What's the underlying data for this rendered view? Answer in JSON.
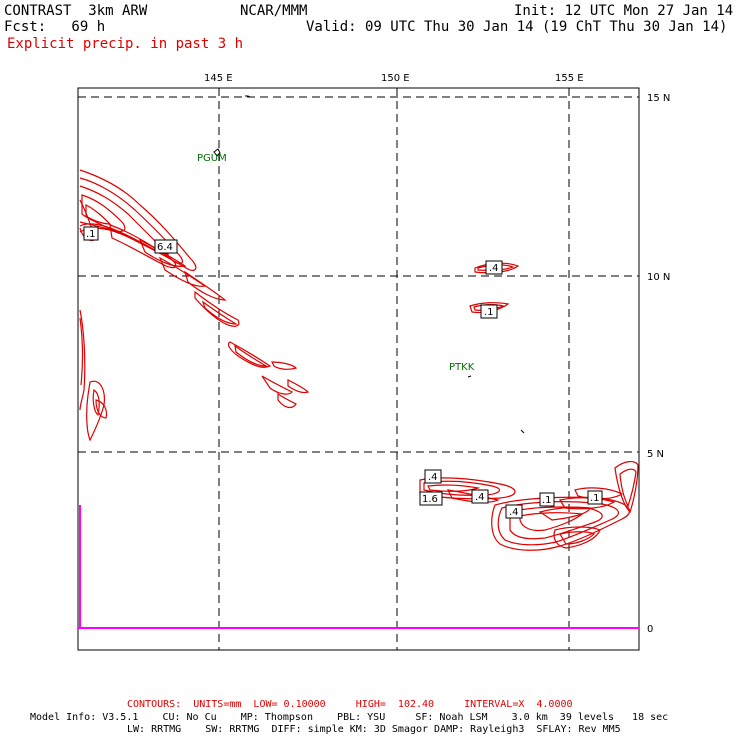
{
  "header": {
    "model": "CONTRAST  3km ARW",
    "org": "NCAR/MMM",
    "init": "Init: 12 UTC Mon 27 Jan 14",
    "fcst": "Fcst:   69 h",
    "valid": "Valid: 09 UTC Thu 30 Jan 14 (19 ChT Thu 30 Jan 14)",
    "field": "Explicit precip. in past 3 h"
  },
  "map": {
    "lon_labels": [
      "145 E",
      "150 E",
      "155 E"
    ],
    "lat_labels": [
      "15 N",
      "10 N",
      "5 N",
      "0"
    ],
    "stations": [
      "PGUM",
      "PTKK"
    ],
    "contour_labels": [
      "6.4",
      ".1",
      ".4",
      ".1",
      "1.6",
      ".4",
      ".4",
      ".4",
      ".1",
      ".1"
    ]
  },
  "footer": {
    "contours": "CONTOURS:  UNITS=mm  LOW= 0.10000     HIGH=  102.40     INTERVAL=X  4.0000",
    "model_info_1": "Model Info: V3.5.1    CU: No Cu    MP: Thompson    PBL: YSU     SF: Noah LSM    3.0 km  39 levels   18 sec",
    "model_info_2": "LW: RRTMG    SW: RRTMG  DIFF: simple KM: 3D Smagor DAMP: Rayleigh3  SFLAY: Rev MM5"
  },
  "colors": {
    "contour": "#e00000",
    "axis": "#ff00ff",
    "station": "#007000"
  }
}
